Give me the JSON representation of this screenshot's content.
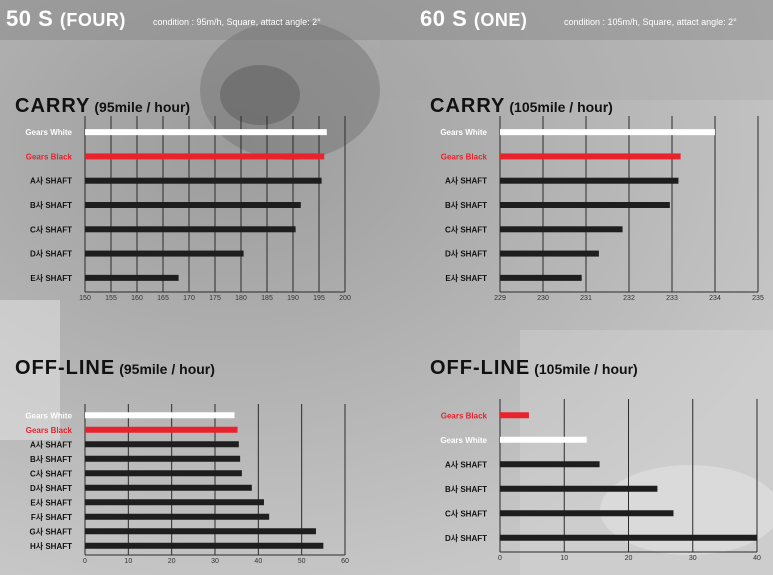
{
  "header": {
    "left_title": "50 S",
    "left_paren": "(FOUR)",
    "left_condition": "condition : 95m/h, Square, attact angle: 2°",
    "right_title": "60 S",
    "right_paren": "(ONE)",
    "right_condition": "condition : 105m/h, Square, attact angle: 2°"
  },
  "colors": {
    "white_bar": "#ffffff",
    "red_bar": "#e8232d",
    "dark_bar": "#1e1e1e",
    "white_label": "#ffffff",
    "red_label": "#e8232d",
    "dark_label": "#111111"
  },
  "chart_data": [
    {
      "id": "carry-95",
      "type": "bar",
      "orientation": "horizontal",
      "title": "CARRY",
      "subtitle": "(95mile / hour)",
      "categories": [
        "Gears White",
        "Gears Black",
        "A사 SHAFT",
        "B사 SHAFT",
        "C사 SHAFT",
        "D사 SHAFT",
        "E사 SHAFT"
      ],
      "values": [
        196.5,
        196.0,
        195.5,
        191.5,
        190.5,
        180.5,
        168.0
      ],
      "colors": [
        "white",
        "red",
        "dark",
        "dark",
        "dark",
        "dark",
        "dark"
      ],
      "ticks": [
        150,
        155,
        160,
        165,
        170,
        175,
        180,
        185,
        190,
        195,
        200
      ],
      "xlim": [
        150,
        200
      ],
      "grid": true
    },
    {
      "id": "carry-105",
      "type": "bar",
      "orientation": "horizontal",
      "title": "CARRY",
      "subtitle": "(105mile / hour)",
      "categories": [
        "Gears White",
        "Gears Black",
        "A사 SHAFT",
        "B사 SHAFT",
        "C사 SHAFT",
        "D사 SHAFT",
        "E사 SHAFT"
      ],
      "values": [
        234.0,
        233.2,
        233.15,
        232.95,
        231.85,
        231.3,
        230.9
      ],
      "colors": [
        "white",
        "red",
        "dark",
        "dark",
        "dark",
        "dark",
        "dark"
      ],
      "ticks": [
        229,
        230,
        231,
        232,
        233,
        234,
        235
      ],
      "xlim": [
        229,
        235
      ],
      "grid": true
    },
    {
      "id": "offline-95",
      "type": "bar",
      "orientation": "horizontal",
      "title": "OFF-LINE",
      "subtitle": "(95mile / hour)",
      "categories": [
        "Gears White",
        "Gears Black",
        "A사 SHAFT",
        "B사 SHAFT",
        "C사 SHAFT",
        "D사 SHAFT",
        "E사 SHAFT",
        "F사 SHAFT",
        "G사 SHAFT",
        "H사 SHAFT"
      ],
      "values": [
        34.5,
        35.2,
        35.5,
        35.8,
        36.2,
        38.5,
        41.3,
        42.5,
        53.3,
        55.0
      ],
      "colors": [
        "white",
        "red",
        "dark",
        "dark",
        "dark",
        "dark",
        "dark",
        "dark",
        "dark",
        "dark"
      ],
      "ticks": [
        0,
        10,
        20,
        30,
        40,
        50,
        60
      ],
      "xlim": [
        0,
        60
      ],
      "grid": true
    },
    {
      "id": "offline-105",
      "type": "bar",
      "orientation": "horizontal",
      "title": "OFF-LINE",
      "subtitle": "(105mile / hour)",
      "categories": [
        "Gears Black",
        "Gears White",
        "A사 SHAFT",
        "B사 SHAFT",
        "C사 SHAFT",
        "D사 SHAFT"
      ],
      "values": [
        4.5,
        13.5,
        15.5,
        24.5,
        27.0,
        40.0
      ],
      "colors": [
        "red",
        "white",
        "dark",
        "dark",
        "dark",
        "dark"
      ],
      "ticks": [
        0,
        10,
        20,
        30,
        40
      ],
      "xlim": [
        0,
        40
      ],
      "grid": true
    }
  ]
}
